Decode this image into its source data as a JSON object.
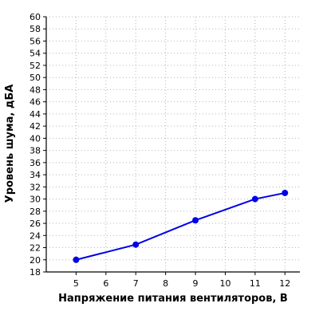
{
  "chart_data": {
    "type": "line",
    "title": "",
    "xlabel": "Напряжение питания вентиляторов, В",
    "ylabel": "Уровень шума, дБА",
    "xlim": [
      4,
      12.5
    ],
    "ylim": [
      18,
      60
    ],
    "x_ticks": [
      5,
      6,
      7,
      8,
      9,
      10,
      11,
      12
    ],
    "y_ticks": [
      18,
      20,
      22,
      24,
      26,
      28,
      30,
      32,
      34,
      36,
      38,
      40,
      42,
      44,
      46,
      48,
      50,
      52,
      54,
      56,
      58,
      60
    ],
    "grid": true,
    "grid_style": "dotted",
    "legend": "none",
    "series": [
      {
        "x": [
          5,
          7,
          9,
          11,
          12
        ],
        "y": [
          20,
          22.5,
          26.5,
          30,
          31
        ],
        "color": "#0000e6"
      }
    ]
  }
}
